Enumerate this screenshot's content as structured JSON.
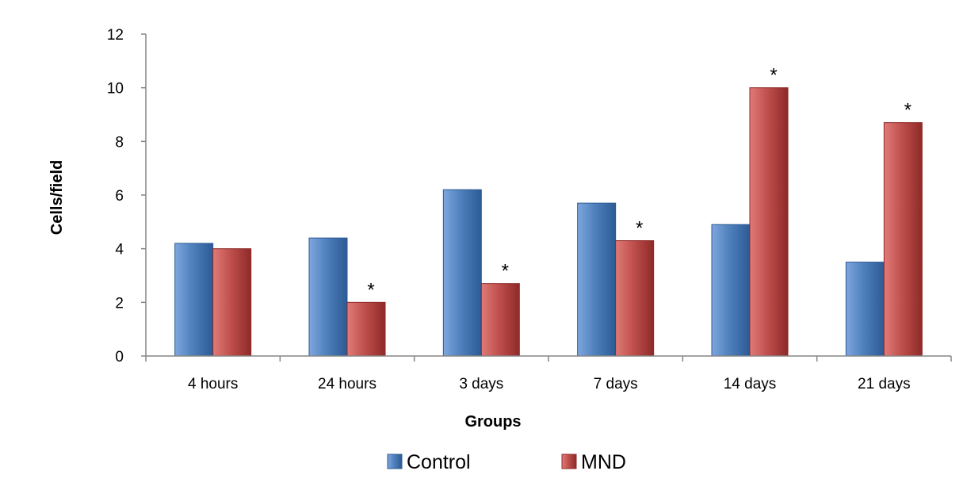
{
  "colors": {
    "control": "#4f81bd",
    "control_dark": "#2c5a94",
    "control_light": "#7fa6de",
    "mnd": "#c0504d",
    "mnd_dark": "#8e2a28",
    "mnd_light": "#e07b78",
    "axis": "#868686"
  },
  "chart_data": {
    "type": "bar",
    "title": "",
    "xlabel": "Groups",
    "ylabel": "Cells/field",
    "categories": [
      "4 hours",
      "24 hours",
      "3 days",
      "7 days",
      "14 days",
      "21 days"
    ],
    "ylim": [
      0,
      12
    ],
    "yticks": [
      0,
      2,
      4,
      6,
      8,
      10,
      12
    ],
    "grid": false,
    "legend_position": "bottom",
    "series": [
      {
        "name": "Control",
        "values": [
          4.2,
          4.4,
          6.2,
          5.7,
          4.9,
          3.5
        ]
      },
      {
        "name": "MND",
        "values": [
          4.0,
          2.0,
          2.7,
          4.3,
          10.0,
          8.7
        ]
      }
    ],
    "annotations": [
      {
        "category": "24 hours",
        "series": "MND",
        "text": "*"
      },
      {
        "category": "3 days",
        "series": "MND",
        "text": "*"
      },
      {
        "category": "7 days",
        "series": "MND",
        "text": "*"
      },
      {
        "category": "14 days",
        "series": "MND",
        "text": "*"
      },
      {
        "category": "21 days",
        "series": "MND",
        "text": "*"
      }
    ]
  }
}
